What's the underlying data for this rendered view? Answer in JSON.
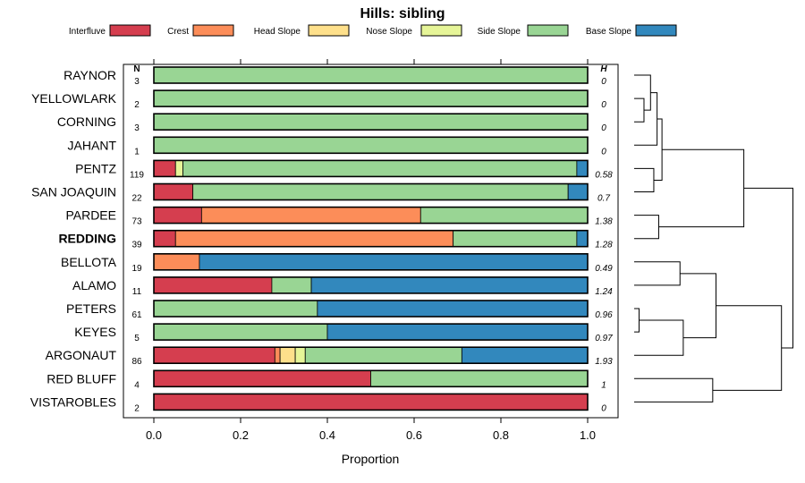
{
  "chart_data": {
    "type": "bar",
    "orientation": "horizontal",
    "stacked": true,
    "title": "Hills: sibling",
    "xlabel": "Proportion",
    "xlim": [
      0,
      1
    ],
    "xticks": [
      "0.0",
      "0.2",
      "0.4",
      "0.6",
      "0.8",
      "1.0"
    ],
    "n_header": "N",
    "h_header": "H",
    "legend": [
      {
        "name": "Interfluve",
        "color": "#D53E4F"
      },
      {
        "name": "Crest",
        "color": "#FC8D59"
      },
      {
        "name": "Head Slope",
        "color": "#FEE08B"
      },
      {
        "name": "Nose Slope",
        "color": "#E6F598"
      },
      {
        "name": "Side Slope",
        "color": "#99D594"
      },
      {
        "name": "Base Slope",
        "color": "#3288BD"
      }
    ],
    "rows": [
      {
        "label": "RAYNOR",
        "n": "3",
        "h": "0",
        "bold": false,
        "values": [
          0,
          0,
          0,
          0,
          1.0,
          0
        ]
      },
      {
        "label": "YELLOWLARK",
        "n": "2",
        "h": "0",
        "bold": false,
        "values": [
          0,
          0,
          0,
          0,
          1.0,
          0
        ]
      },
      {
        "label": "CORNING",
        "n": "3",
        "h": "0",
        "bold": false,
        "values": [
          0,
          0,
          0,
          0,
          1.0,
          0
        ]
      },
      {
        "label": "JAHANT",
        "n": "1",
        "h": "0",
        "bold": false,
        "values": [
          0,
          0,
          0,
          0,
          1.0,
          0
        ]
      },
      {
        "label": "PENTZ",
        "n": "119",
        "h": "0.58",
        "bold": false,
        "values": [
          0.05,
          0,
          0,
          0.017,
          0.908,
          0.025
        ]
      },
      {
        "label": "SAN JOAQUIN",
        "n": "22",
        "h": "0.7",
        "bold": false,
        "values": [
          0.09,
          0,
          0,
          0,
          0.865,
          0.045
        ]
      },
      {
        "label": "PARDEE",
        "n": "73",
        "h": "1.38",
        "bold": false,
        "values": [
          0.11,
          0.505,
          0,
          0,
          0.385,
          0
        ]
      },
      {
        "label": "REDDING",
        "n": "39",
        "h": "1.28",
        "bold": true,
        "values": [
          0.05,
          0.64,
          0,
          0,
          0.285,
          0.025
        ]
      },
      {
        "label": "BELLOTA",
        "n": "19",
        "h": "0.49",
        "bold": false,
        "values": [
          0,
          0.105,
          0,
          0,
          0,
          0.895
        ]
      },
      {
        "label": "ALAMO",
        "n": "11",
        "h": "1.24",
        "bold": false,
        "values": [
          0.272,
          0,
          0,
          0,
          0.091,
          0.637
        ]
      },
      {
        "label": "PETERS",
        "n": "61",
        "h": "0.96",
        "bold": false,
        "values": [
          0,
          0,
          0,
          0,
          0.377,
          0.623
        ]
      },
      {
        "label": "KEYES",
        "n": "5",
        "h": "0.97",
        "bold": false,
        "values": [
          0,
          0,
          0,
          0,
          0.4,
          0.6
        ]
      },
      {
        "label": "ARGONAUT",
        "n": "86",
        "h": "1.93",
        "bold": false,
        "values": [
          0.279,
          0.012,
          0.035,
          0.023,
          0.361,
          0.29
        ]
      },
      {
        "label": "RED BLUFF",
        "n": "4",
        "h": "1",
        "bold": false,
        "values": [
          0.5,
          0,
          0,
          0,
          0.5,
          0
        ]
      },
      {
        "label": "VISTAROBLES",
        "n": "2",
        "h": "0",
        "bold": false,
        "values": [
          1.0,
          0,
          0,
          0,
          0,
          0
        ]
      }
    ],
    "dendrogram": {
      "type": "hierarchical-clustering",
      "nodes": [
        {
          "id": 15,
          "a": "r1",
          "b": "r2",
          "h": 0.06
        },
        {
          "id": 16,
          "a": 15,
          "b": "r0",
          "h": 0.1
        },
        {
          "id": 17,
          "a": 16,
          "b": "r3",
          "h": 0.14
        },
        {
          "id": 18,
          "a": "r4",
          "b": "r5",
          "h": 0.12
        },
        {
          "id": 19,
          "a": 17,
          "b": 18,
          "h": 0.17
        },
        {
          "id": 20,
          "a": "r6",
          "b": "r7",
          "h": 0.15
        },
        {
          "id": 21,
          "a": 19,
          "b": 20,
          "h": 0.67
        },
        {
          "id": 22,
          "a": "r10",
          "b": "r11",
          "h": 0.03
        },
        {
          "id": 23,
          "a": 22,
          "b": "r12",
          "h": 0.3
        },
        {
          "id": 24,
          "a": "r8",
          "b": "r9",
          "h": 0.28
        },
        {
          "id": 25,
          "a": 24,
          "b": 23,
          "h": 0.5
        },
        {
          "id": 26,
          "a": "r13",
          "b": "r14",
          "h": 0.48
        },
        {
          "id": 27,
          "a": 25,
          "b": 26,
          "h": 0.9
        },
        {
          "id": 28,
          "a": 21,
          "b": 27,
          "h": 0.97
        }
      ]
    }
  }
}
